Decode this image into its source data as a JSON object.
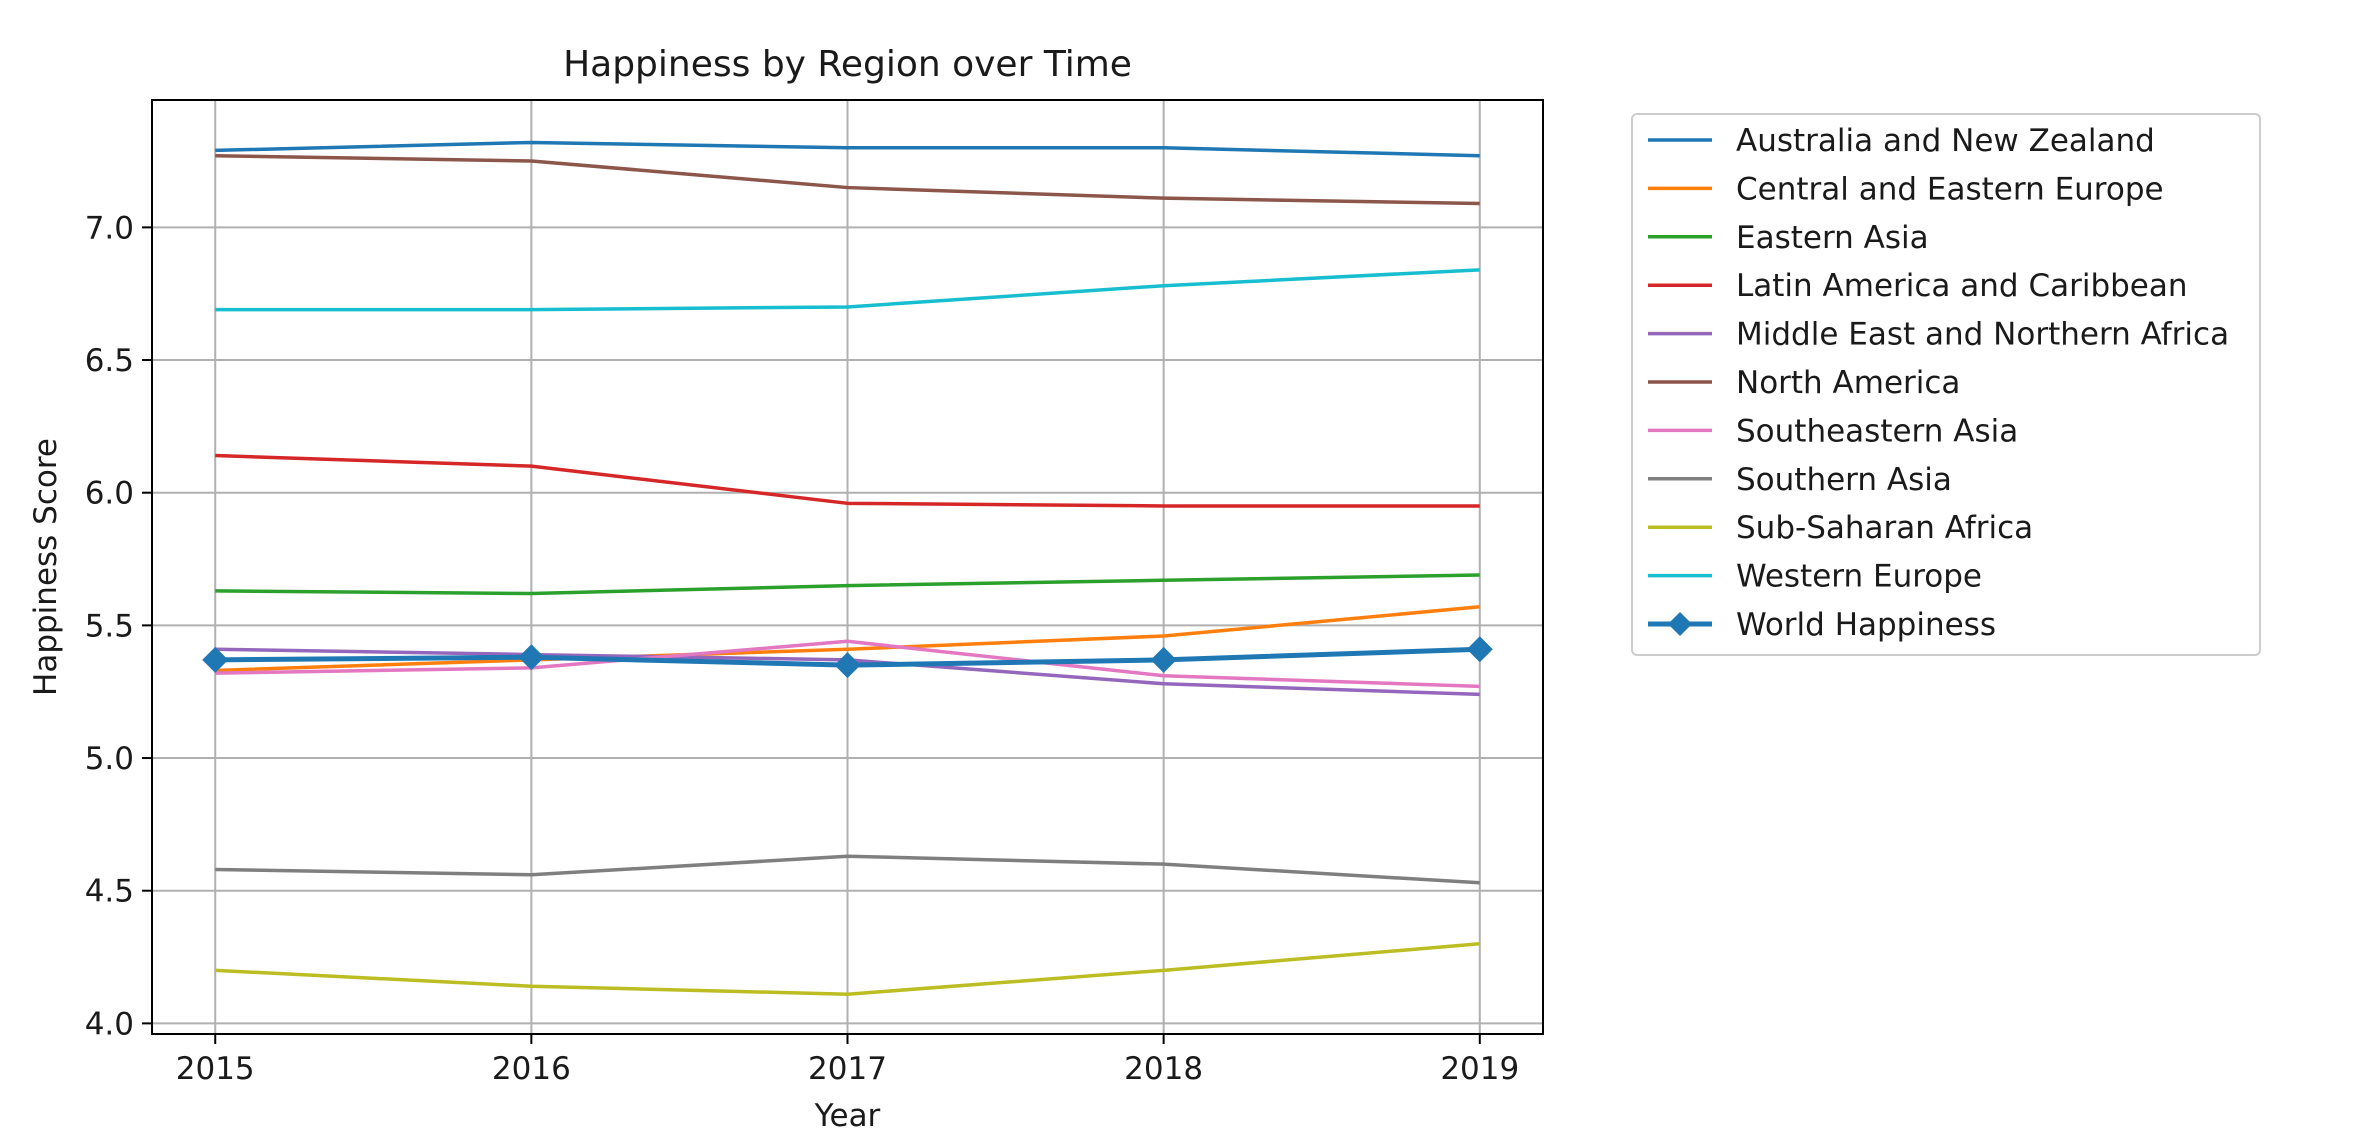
{
  "chart_data": {
    "type": "line",
    "title": "Happiness by Region over Time",
    "xlabel": "Year",
    "ylabel": "Happiness Score",
    "x": [
      "2015",
      "2016",
      "2017",
      "2018",
      "2019"
    ],
    "xlim": [
      2014.8,
      2019.2
    ],
    "ylim": [
      3.96,
      7.48
    ],
    "yticks": [
      "4.0",
      "4.5",
      "5.0",
      "5.5",
      "6.0",
      "6.5",
      "7.0"
    ],
    "grid": true,
    "legend_position": "outside-right",
    "series": [
      {
        "name": "Australia and New Zealand",
        "color": "#1f77b4",
        "values": [
          7.29,
          7.32,
          7.3,
          7.3,
          7.27
        ]
      },
      {
        "name": "Central and Eastern Europe",
        "color": "#ff7f0e",
        "values": [
          5.33,
          5.37,
          5.41,
          5.46,
          5.57
        ]
      },
      {
        "name": "Eastern Asia",
        "color": "#2ca02c",
        "values": [
          5.63,
          5.62,
          5.65,
          5.67,
          5.69
        ]
      },
      {
        "name": "Latin America and Caribbean",
        "color": "#d62728",
        "values": [
          6.14,
          6.1,
          5.96,
          5.95,
          5.95
        ]
      },
      {
        "name": "Middle East and Northern Africa",
        "color": "#9467bd",
        "values": [
          5.41,
          5.39,
          5.37,
          5.28,
          5.24
        ]
      },
      {
        "name": "North America",
        "color": "#8c564b",
        "values": [
          7.27,
          7.25,
          7.15,
          7.11,
          7.09
        ]
      },
      {
        "name": "Southeastern Asia",
        "color": "#e377c2",
        "values": [
          5.32,
          5.34,
          5.44,
          5.31,
          5.27
        ]
      },
      {
        "name": "Southern Asia",
        "color": "#7f7f7f",
        "values": [
          4.58,
          4.56,
          4.63,
          4.6,
          4.53
        ]
      },
      {
        "name": "Sub-Saharan Africa",
        "color": "#bcbd22",
        "values": [
          4.2,
          4.14,
          4.11,
          4.2,
          4.3
        ]
      },
      {
        "name": "Western Europe",
        "color": "#17becf",
        "values": [
          6.69,
          6.69,
          6.7,
          6.78,
          6.84
        ]
      },
      {
        "name": "World Happiness",
        "color": "#1f77b4",
        "marker": "diamond",
        "values": [
          5.37,
          5.38,
          5.35,
          5.37,
          5.41
        ]
      }
    ]
  }
}
